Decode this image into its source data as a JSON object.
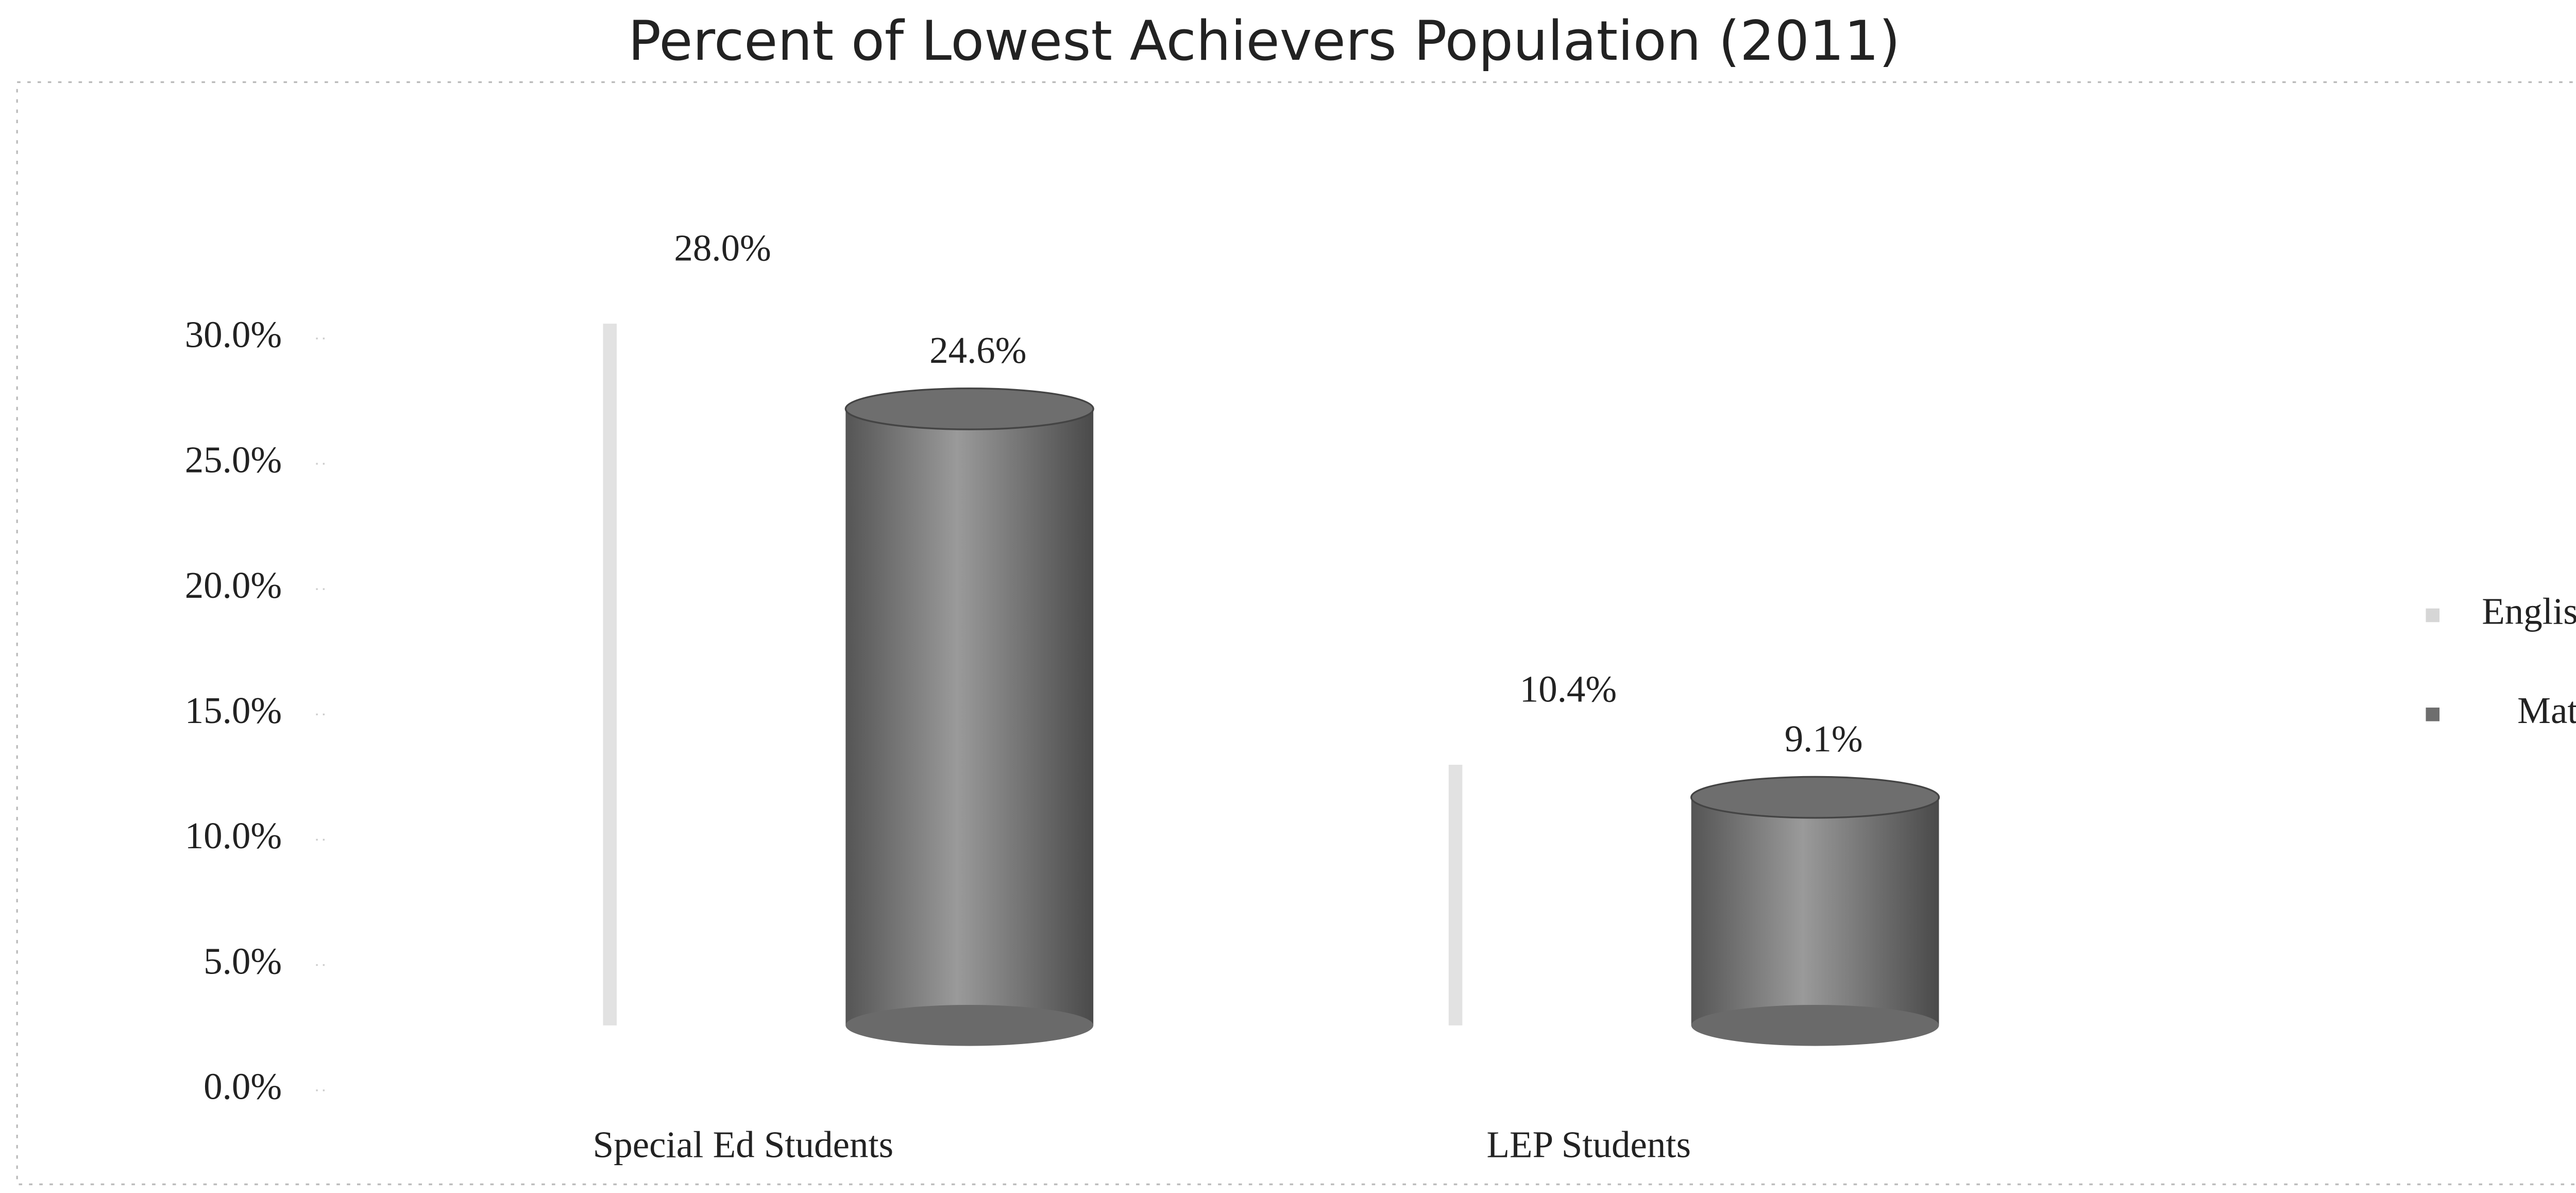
{
  "chart_data": {
    "type": "bar",
    "title": "Percent of Lowest Achievers Population (2011)",
    "categories": [
      "Special Ed Students",
      "LEP Students"
    ],
    "series": [
      {
        "name": "English",
        "color": "#d6d6d6",
        "values": [
          28.0,
          10.4
        ],
        "value_labels": [
          "28.0%",
          "10.4%"
        ]
      },
      {
        "name": "Math",
        "color": "#6e6e6e",
        "values": [
          24.6,
          9.1
        ],
        "value_labels": [
          "24.6%",
          "9.1%"
        ]
      }
    ],
    "ylim": [
      0,
      30
    ],
    "yticks": [
      {
        "value": 0,
        "label": "0.0%"
      },
      {
        "value": 5,
        "label": "5.0%"
      },
      {
        "value": 10,
        "label": "10.0%"
      },
      {
        "value": 15,
        "label": "15.0%"
      },
      {
        "value": 20,
        "label": "20.0%"
      },
      {
        "value": 25,
        "label": "25.0%"
      },
      {
        "value": 30,
        "label": "30.0%"
      }
    ],
    "legend": "right"
  }
}
